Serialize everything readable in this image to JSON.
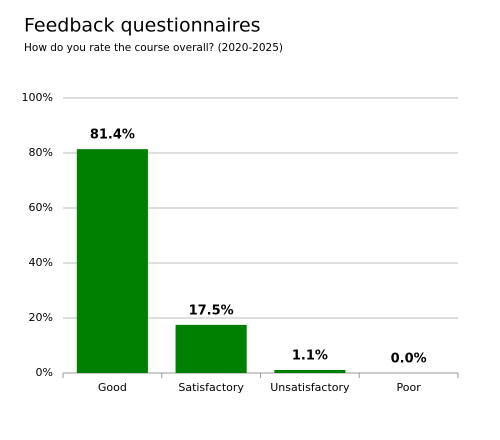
{
  "chart_data": {
    "type": "bar",
    "title": "Feedback questionnaires",
    "subtitle": "How do you rate the course overall? (2020-2025)",
    "categories": [
      "Good",
      "Satisfactory",
      "Unsatisfactory",
      "Poor"
    ],
    "values": [
      81.4,
      17.5,
      1.1,
      0.0
    ],
    "value_labels": [
      "81.4%",
      "17.5%",
      "1.1%",
      "0.0%"
    ],
    "color": "#008000",
    "ylim": [
      0,
      100
    ],
    "yticks": [
      {
        "value": 0,
        "label": "0%"
      },
      {
        "value": 20,
        "label": "20%"
      },
      {
        "value": 40,
        "label": "40%"
      },
      {
        "value": 60,
        "label": "60%"
      },
      {
        "value": 80,
        "label": "80%"
      },
      {
        "value": 100,
        "label": "100%"
      }
    ],
    "grid": true
  }
}
